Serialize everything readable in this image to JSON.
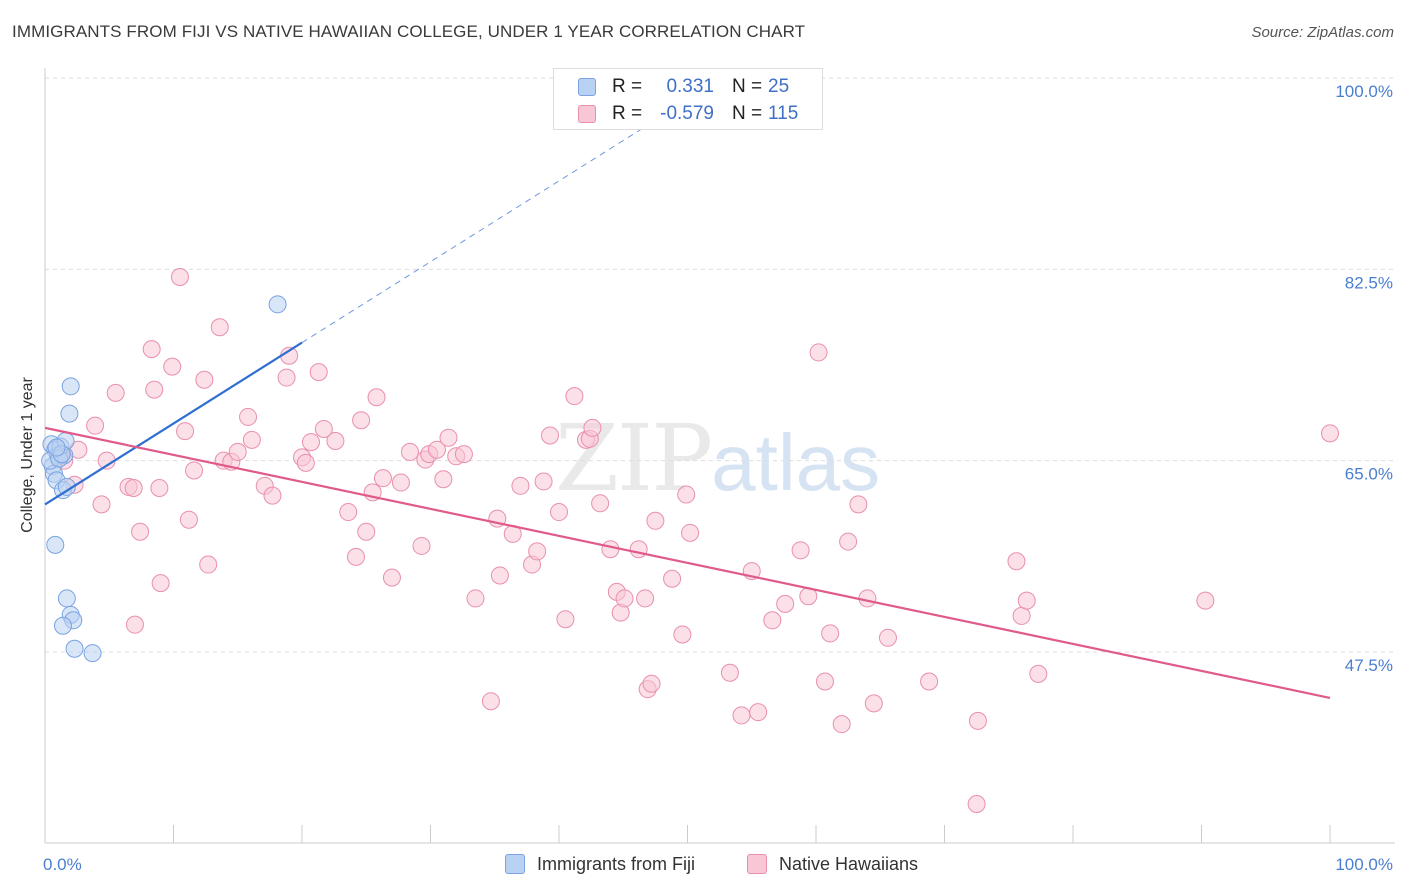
{
  "header": {
    "title": "IMMIGRANTS FROM FIJI VS NATIVE HAWAIIAN COLLEGE, UNDER 1 YEAR CORRELATION CHART",
    "source": "Source: ZipAtlas.com"
  },
  "watermark": {
    "zip": "ZIP",
    "atlas": "atlas"
  },
  "legend_top": {
    "rows": [
      {
        "r_label": "R =",
        "r_value": "0.331",
        "n_label": "N =",
        "n_value": "25"
      },
      {
        "r_label": "R =",
        "r_value": "-0.579",
        "n_label": "N =",
        "n_value": "115"
      }
    ]
  },
  "legend_bottom": {
    "items": [
      {
        "label": "Immigrants from Fiji"
      },
      {
        "label": "Native Hawaiians"
      }
    ]
  },
  "colors": {
    "blue_fill": "#b9d1f3",
    "blue_stroke": "#7aa3e0",
    "blue_line": "#2f6fd1",
    "pink_fill": "#f7c7d6",
    "pink_stroke": "#e98fae",
    "pink_line": "#e05a8c",
    "grid": "#dddddd",
    "axis_label": "#4a7fd0"
  },
  "chart_data": {
    "type": "scatter",
    "title": "IMMIGRANTS FROM FIJI VS NATIVE HAWAIIAN COLLEGE, UNDER 1 YEAR CORRELATION CHART",
    "xlabel": "",
    "ylabel": "College, Under 1 year",
    "xlim": [
      0,
      100
    ],
    "ylim": [
      32.5,
      102
    ],
    "x_tick_labels": [
      "0.0%",
      "100.0%"
    ],
    "y_ticks": [
      47.5,
      65.0,
      82.5,
      100.0
    ],
    "y_tick_labels": [
      "47.5%",
      "65.0%",
      "82.5%",
      "100.0%"
    ],
    "legend_placement": "top-center",
    "series": [
      {
        "name": "Immigrants from Fiji",
        "R": 0.331,
        "N": 25,
        "trend": {
          "x0": 0.0,
          "y0": 61.0,
          "x1": 20.0,
          "y1": 75.8,
          "dash_to_x": 48.0,
          "dash_to_y": 96.5
        },
        "points": [
          [
            0.5,
            66.5
          ],
          [
            0.8,
            66.0
          ],
          [
            1.0,
            65.5
          ],
          [
            0.6,
            64.5
          ],
          [
            0.7,
            63.8
          ],
          [
            0.9,
            63.2
          ],
          [
            1.5,
            65.5
          ],
          [
            1.2,
            66.3
          ],
          [
            1.6,
            66.8
          ],
          [
            1.4,
            62.3
          ],
          [
            1.7,
            62.6
          ],
          [
            1.9,
            69.3
          ],
          [
            2.0,
            71.8
          ],
          [
            0.8,
            57.3
          ],
          [
            1.7,
            52.4
          ],
          [
            2.0,
            50.9
          ],
          [
            2.2,
            50.4
          ],
          [
            1.4,
            49.9
          ],
          [
            2.3,
            47.8
          ],
          [
            3.7,
            47.4
          ],
          [
            18.1,
            79.3
          ],
          [
            0.4,
            65.0
          ],
          [
            1.1,
            65.2
          ],
          [
            1.3,
            65.6
          ],
          [
            0.9,
            66.2
          ]
        ]
      },
      {
        "name": "Native Hawaiians",
        "R": -0.579,
        "N": 115,
        "trend": {
          "x0": 0.0,
          "y0": 68.0,
          "x1": 100.0,
          "y1": 43.3
        },
        "points": [
          [
            1.2,
            65.4
          ],
          [
            1.5,
            65.0
          ],
          [
            2.3,
            62.8
          ],
          [
            2.6,
            66.0
          ],
          [
            3.9,
            68.2
          ],
          [
            4.4,
            61.0
          ],
          [
            4.8,
            65.0
          ],
          [
            5.5,
            71.2
          ],
          [
            6.5,
            62.6
          ],
          [
            7.0,
            50.0
          ],
          [
            6.9,
            62.5
          ],
          [
            7.4,
            58.5
          ],
          [
            8.3,
            75.2
          ],
          [
            8.5,
            71.5
          ],
          [
            8.9,
            62.5
          ],
          [
            9.0,
            53.8
          ],
          [
            9.9,
            73.6
          ],
          [
            10.5,
            81.8
          ],
          [
            10.9,
            67.7
          ],
          [
            11.2,
            59.6
          ],
          [
            11.6,
            64.1
          ],
          [
            12.4,
            72.4
          ],
          [
            12.7,
            55.5
          ],
          [
            13.6,
            77.2
          ],
          [
            13.9,
            65.0
          ],
          [
            14.5,
            64.9
          ],
          [
            15.0,
            65.8
          ],
          [
            15.8,
            69.0
          ],
          [
            16.1,
            66.9
          ],
          [
            17.1,
            62.7
          ],
          [
            17.7,
            61.8
          ],
          [
            18.8,
            72.6
          ],
          [
            19.0,
            74.6
          ],
          [
            20.0,
            65.3
          ],
          [
            20.3,
            64.8
          ],
          [
            20.7,
            66.7
          ],
          [
            21.3,
            73.1
          ],
          [
            21.7,
            67.9
          ],
          [
            22.6,
            66.8
          ],
          [
            23.6,
            60.3
          ],
          [
            24.2,
            56.2
          ],
          [
            24.6,
            68.7
          ],
          [
            25.0,
            58.5
          ],
          [
            25.5,
            62.1
          ],
          [
            25.8,
            70.8
          ],
          [
            26.3,
            63.4
          ],
          [
            27.0,
            54.3
          ],
          [
            27.7,
            63.0
          ],
          [
            28.4,
            65.8
          ],
          [
            29.3,
            57.2
          ],
          [
            29.6,
            65.1
          ],
          [
            29.9,
            65.6
          ],
          [
            30.5,
            66.0
          ],
          [
            31.0,
            63.3
          ],
          [
            31.4,
            67.1
          ],
          [
            32.0,
            65.4
          ],
          [
            32.6,
            65.6
          ],
          [
            33.5,
            52.4
          ],
          [
            34.7,
            43.0
          ],
          [
            35.2,
            59.7
          ],
          [
            35.4,
            54.5
          ],
          [
            36.4,
            58.3
          ],
          [
            37.0,
            62.7
          ],
          [
            37.9,
            55.5
          ],
          [
            38.3,
            56.7
          ],
          [
            38.8,
            63.1
          ],
          [
            39.3,
            67.3
          ],
          [
            40.0,
            60.3
          ],
          [
            40.5,
            50.5
          ],
          [
            41.2,
            70.9
          ],
          [
            42.1,
            66.9
          ],
          [
            42.4,
            67.0
          ],
          [
            42.6,
            68.0
          ],
          [
            43.2,
            61.1
          ],
          [
            44.0,
            56.9
          ],
          [
            44.5,
            53.0
          ],
          [
            44.8,
            51.1
          ],
          [
            45.1,
            52.4
          ],
          [
            46.2,
            56.9
          ],
          [
            46.7,
            52.4
          ],
          [
            46.9,
            44.1
          ],
          [
            47.2,
            44.6
          ],
          [
            47.5,
            59.5
          ],
          [
            48.8,
            54.2
          ],
          [
            49.6,
            49.1
          ],
          [
            49.9,
            61.9
          ],
          [
            50.2,
            58.4
          ],
          [
            53.3,
            45.6
          ],
          [
            54.2,
            41.7
          ],
          [
            55.0,
            54.9
          ],
          [
            55.5,
            42.0
          ],
          [
            56.6,
            50.4
          ],
          [
            57.6,
            51.9
          ],
          [
            58.8,
            56.8
          ],
          [
            59.4,
            52.6
          ],
          [
            60.2,
            74.9
          ],
          [
            60.7,
            44.8
          ],
          [
            61.1,
            49.2
          ],
          [
            62.0,
            40.9
          ],
          [
            62.5,
            57.6
          ],
          [
            63.3,
            61.0
          ],
          [
            64.0,
            52.4
          ],
          [
            64.5,
            42.8
          ],
          [
            65.6,
            48.8
          ],
          [
            68.8,
            44.8
          ],
          [
            72.5,
            33.6
          ],
          [
            72.6,
            41.2
          ],
          [
            75.6,
            55.8
          ],
          [
            76.0,
            50.8
          ],
          [
            76.4,
            52.2
          ],
          [
            77.3,
            45.5
          ],
          [
            90.3,
            52.2
          ],
          [
            100.0,
            67.5
          ]
        ]
      }
    ]
  }
}
